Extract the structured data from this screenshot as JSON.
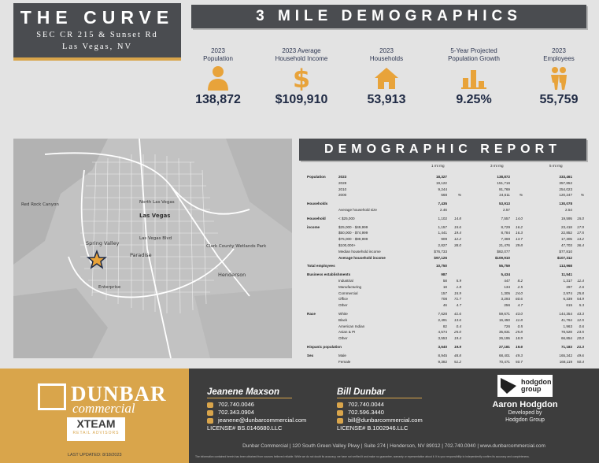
{
  "header": {
    "title": "THE CURVE",
    "address1": "SEC CR 215 & Sunset Rd",
    "address2": "Las Vegas, NV"
  },
  "demographics": {
    "banner": "3 MILE DEMOGRAPHICS",
    "stats": [
      {
        "label": "2023\nPopulation",
        "value": "138,872",
        "icon": "person-icon"
      },
      {
        "label": "2023 Average\nHousehold Income",
        "value": "$109,910",
        "icon": "dollar-icon"
      },
      {
        "label": "2023\nHouseholds",
        "value": "53,913",
        "icon": "house-icon"
      },
      {
        "label": "5-Year Projected\nPopulation Growth",
        "value": "9.25%",
        "icon": "bar-chart-icon"
      },
      {
        "label": "2023\nEmployees",
        "value": "55,759",
        "icon": "people-icon"
      }
    ]
  },
  "map": {
    "labels": [
      "North Las Vegas",
      "Las Vegas",
      "Spring Valley",
      "Paradise",
      "Las Vegas Blvd",
      "Enterprise",
      "Henderson",
      "Red Rock Canyon",
      "Clark County Wetlands Park"
    ]
  },
  "report": {
    "banner": "DEMOGRAPHIC REPORT",
    "cols": [
      "1 mi rng",
      "3 mi rng",
      "5 mi rng"
    ],
    "rows": [
      {
        "sec": "Population",
        "sub": "2023",
        "v": [
          "18,327",
          "",
          "138,872",
          "",
          "333,461",
          ""
        ],
        "bold": true
      },
      {
        "sec": "",
        "sub": "2028",
        "v": [
          "19,122",
          "",
          "151,716",
          "",
          "357,852",
          ""
        ]
      },
      {
        "sec": "",
        "sub": "2010",
        "v": [
          "9,244",
          "",
          "91,769",
          "",
          "254,023",
          ""
        ]
      },
      {
        "sec": "",
        "sub": "2000",
        "v": [
          "568",
          "%",
          "24,611",
          "%",
          "120,247",
          "%"
        ]
      },
      {
        "sec": "Households",
        "sub": "",
        "v": [
          "7,435",
          "",
          "53,913",
          "",
          "130,078",
          ""
        ],
        "bold": true
      },
      {
        "sec": "",
        "sub": "Average household size",
        "v": [
          "2.46",
          "",
          "2.57",
          "",
          "2.54",
          ""
        ]
      },
      {
        "sec": "Household",
        "sub": "< $25,000",
        "v": [
          "1,102",
          "14.8",
          "7,557",
          "14.0",
          "19,595",
          "15.0"
        ]
      },
      {
        "sec": "income",
        "sub": "$25,000 - $49,999",
        "v": [
          "1,157",
          "15.6",
          "8,729",
          "16.2",
          "23,418",
          "17.9"
        ]
      },
      {
        "sec": "",
        "sub": "$50,000 - $74,999",
        "v": [
          "1,441",
          "19.4",
          "8,784",
          "16.3",
          "22,852",
          "17.5"
        ]
      },
      {
        "sec": "",
        "sub": "$75,000 - $99,999",
        "v": [
          "909",
          "12.2",
          "7,369",
          "13.7",
          "17,305",
          "13.2"
        ]
      },
      {
        "sec": "",
        "sub": "$100,000+",
        "v": [
          "2,827",
          "38.0",
          "21,476",
          "39.8",
          "47,703",
          "36.4"
        ]
      },
      {
        "sec": "",
        "sub": "Median household income",
        "v": [
          "$76,733",
          "",
          "$82,077",
          "",
          "$77,810",
          ""
        ]
      },
      {
        "sec": "",
        "sub": "Average household income",
        "v": [
          "$97,126",
          "",
          "$109,910",
          "",
          "$107,312",
          ""
        ],
        "bold": true
      },
      {
        "sec": "Total employees",
        "sub": "",
        "v": [
          "10,750",
          "",
          "55,759",
          "",
          "113,968",
          ""
        ],
        "bold": true
      },
      {
        "sec": "Business establishments",
        "sub": "",
        "v": [
          "987",
          "",
          "5,434",
          "",
          "11,541",
          ""
        ],
        "bold": true
      },
      {
        "sec": "",
        "sub": "Industrial",
        "v": [
          "58",
          "5.9",
          "447",
          "8.2",
          "1,317",
          "11.4"
        ]
      },
      {
        "sec": "",
        "sub": "Manufacturing",
        "v": [
          "18",
          "1.8",
          "134",
          "2.5",
          "297",
          "2.6"
        ]
      },
      {
        "sec": "",
        "sub": "Commercial",
        "v": [
          "157",
          "15.9",
          "1,305",
          "24.0",
          "2,974",
          "25.8"
        ]
      },
      {
        "sec": "",
        "sub": "Office",
        "v": [
          "708",
          "71.7",
          "3,293",
          "60.6",
          "6,339",
          "54.9"
        ]
      },
      {
        "sec": "",
        "sub": "Other",
        "v": [
          "46",
          "4.7",
          "256",
          "4.7",
          "615",
          "5.3"
        ]
      },
      {
        "sec": "Race",
        "sub": "White",
        "v": [
          "7,628",
          "41.6",
          "59,671",
          "43.0",
          "144,354",
          "43.3"
        ]
      },
      {
        "sec": "",
        "sub": "Black",
        "v": [
          "2,491",
          "13.6",
          "16,450",
          "11.8",
          "41,764",
          "12.5"
        ]
      },
      {
        "sec": "",
        "sub": "American Indian",
        "v": [
          "82",
          "0.4",
          "726",
          "0.5",
          "1,963",
          "0.6"
        ]
      },
      {
        "sec": "",
        "sub": "Asian & PI",
        "v": [
          "4,574",
          "25.0",
          "35,831",
          "25.8",
          "78,528",
          "23.5"
        ]
      },
      {
        "sec": "",
        "sub": "Other",
        "v": [
          "3,553",
          "19.4",
          "26,195",
          "18.9",
          "66,854",
          "20.0"
        ]
      },
      {
        "sec": "Hispanic population",
        "sub": "",
        "v": [
          "3,640",
          "19.9",
          "27,181",
          "19.6",
          "71,183",
          "21.3"
        ],
        "bold": true
      },
      {
        "sec": "Sex",
        "sub": "Male",
        "v": [
          "8,945",
          "48.8",
          "68,401",
          "49.3",
          "165,342",
          "49.6"
        ]
      },
      {
        "sec": "",
        "sub": "Female",
        "v": [
          "9,382",
          "51.2",
          "70,471",
          "50.7",
          "168,119",
          "50.4"
        ]
      }
    ]
  },
  "footer": {
    "brand_main": "DUNBAR",
    "brand_sub": "commercial",
    "xteam_main": "XTEAM",
    "xteam_sub": "RETAIL ADVISORS",
    "updated": "LAST UPDATED: 8/18/2023",
    "agent1": {
      "name": "Jeanene Maxson",
      "phone1": "702.740.0046",
      "phone2": "702.343.0904",
      "email": "jeanene@dunbarcommercial.com",
      "license": "LICENSE# BS.0146680.LLC"
    },
    "agent2": {
      "name": "Bill Dunbar",
      "phone1": "702.740.0044",
      "phone2": "702.596.3440",
      "email": "bill@dunbarcommercial.com",
      "license": "LICENSE# B.1002946.LLC"
    },
    "hodgdon": {
      "logo": "hodgdon group",
      "name": "Aaron Hodgdon",
      "dev1": "Developed by",
      "dev2": "Hodgdon Group"
    },
    "contact": "Dunbar Commercial | 120 South Green Valley Pkwy | Suite 274 | Henderson, NV 89012 | 702.740.0040 | www.dunbarcommercial.com",
    "disclaimer": "The information contained herein has been obtained from sources believed reliable. While we do not doubt its accuracy, we have not verified it and make no guarantee, warranty or representation about it. It is your responsibility to independently confirm its accuracy and completeness."
  }
}
